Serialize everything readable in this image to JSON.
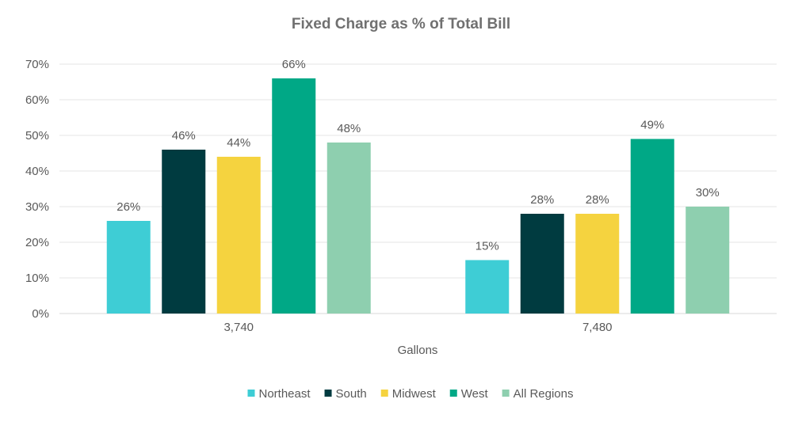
{
  "chart_data": {
    "type": "bar",
    "title": "Fixed Charge as % of Total Bill",
    "xlabel": "Gallons",
    "ylabel": "",
    "categories": [
      "3,740",
      "7,480"
    ],
    "ylim": [
      0,
      70
    ],
    "yticks": [
      0,
      10,
      20,
      30,
      40,
      50,
      60,
      70
    ],
    "y_tick_suffix": "%",
    "grid": true,
    "legend_position": "bottom",
    "series": [
      {
        "name": "Northeast",
        "color": "#3ecdd5",
        "values": [
          26,
          15
        ],
        "labels": [
          "26%",
          "15%"
        ]
      },
      {
        "name": "South",
        "color": "#003b40",
        "values": [
          46,
          28
        ],
        "labels": [
          "46%",
          "28%"
        ]
      },
      {
        "name": "Midwest",
        "color": "#f5d33f",
        "values": [
          44,
          28
        ],
        "labels": [
          "44%",
          "28%"
        ]
      },
      {
        "name": "West",
        "color": "#00a886",
        "values": [
          66,
          49
        ],
        "labels": [
          "66%",
          "49%"
        ]
      },
      {
        "name": "All Regions",
        "color": "#8ecfaf",
        "values": [
          48,
          30
        ],
        "labels": [
          "48%",
          "30%"
        ]
      }
    ]
  }
}
